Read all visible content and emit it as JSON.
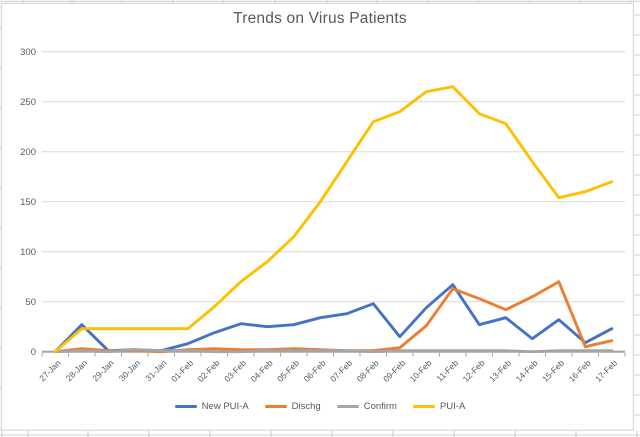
{
  "chart_data": {
    "type": "line",
    "title": "Trends on Virus Patients",
    "categories": [
      "27-Jan",
      "28-Jan",
      "29-Jan",
      "30-Jan",
      "31-Jan",
      "01-Feb",
      "02-Feb",
      "03-Feb",
      "04-Feb",
      "05-Feb",
      "06-Feb",
      "07-Feb",
      "08-Feb",
      "09-Feb",
      "10-Feb",
      "11-Feb",
      "12-Feb",
      "13-Feb",
      "14-Feb",
      "15-Feb",
      "16-Feb",
      "17-Feb"
    ],
    "series": [
      {
        "name": "New PUI-A",
        "color": "#4472C4",
        "values": [
          0,
          27,
          1,
          2,
          1,
          8,
          19,
          28,
          25,
          27,
          34,
          38,
          48,
          15,
          44,
          67,
          27,
          34,
          13,
          32,
          9,
          23
        ]
      },
      {
        "name": "Dischg",
        "color": "#ED7D31",
        "values": [
          0,
          3,
          1,
          1,
          0,
          2,
          3,
          2,
          2,
          3,
          2,
          1,
          1,
          4,
          26,
          63,
          53,
          42,
          55,
          70,
          5,
          11
        ]
      },
      {
        "name": "Confirm",
        "color": "#A5A5A5",
        "values": [
          0,
          1,
          0,
          2,
          1,
          1,
          0,
          0,
          1,
          1,
          1,
          1,
          0,
          1,
          1,
          1,
          1,
          1,
          0,
          1,
          1,
          1
        ]
      },
      {
        "name": "PUI-A",
        "color": "#FFC000",
        "values": [
          0,
          23,
          23,
          23,
          23,
          23,
          45,
          70,
          90,
          115,
          150,
          190,
          230,
          240,
          260,
          265,
          238,
          228,
          190,
          154,
          160,
          170
        ]
      }
    ],
    "ylim": [
      0,
      300
    ],
    "yticks": [
      0,
      50,
      100,
      150,
      200,
      250,
      300
    ],
    "grid": true,
    "legend_position": "bottom",
    "xlabel": "",
    "ylabel": "",
    "colors": {
      "text": "#595959",
      "gridline": "#D9D9D9",
      "axis": "#A6A6A6",
      "sheet_gridline": "#D0D0D0",
      "chart_border": "#D9D9D9",
      "chart_fill": "#FFFFFF"
    }
  }
}
